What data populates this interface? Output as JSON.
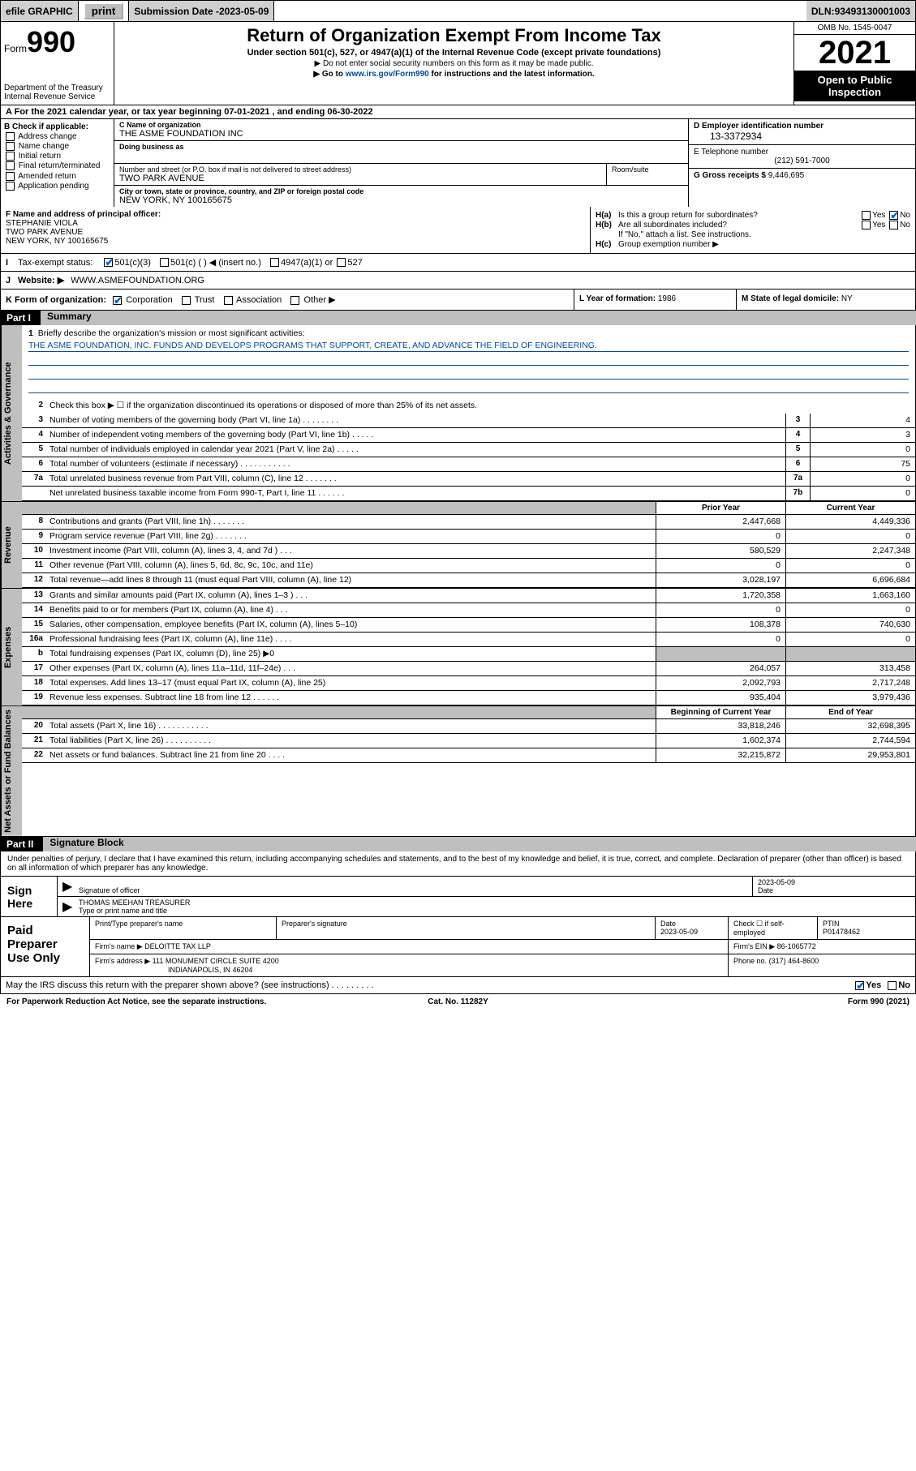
{
  "topbar": {
    "efile": "efile GRAPHIC",
    "print": "print",
    "subdate_label": "Submission Date - ",
    "subdate": "2023-05-09",
    "dln_label": "DLN: ",
    "dln": "93493130001003"
  },
  "header": {
    "form_prefix": "Form",
    "form_number": "990",
    "dept": "Department of the Treasury",
    "irs": "Internal Revenue Service",
    "title": "Return of Organization Exempt From Income Tax",
    "subtitle": "Under section 501(c), 527, or 4947(a)(1) of the Internal Revenue Code (except private foundations)",
    "note1": "▶ Do not enter social security numbers on this form as it may be made public.",
    "note2_prefix": "▶ Go to ",
    "note2_link": "www.irs.gov/Form990",
    "note2_suffix": " for instructions and the latest information.",
    "omb": "OMB No. 1545-0047",
    "year": "2021",
    "open_public": "Open to Public Inspection"
  },
  "row_a": "For the 2021 calendar year, or tax year beginning 07-01-2021   , and ending 06-30-2022",
  "section_b": {
    "title": "B Check if applicable:",
    "opts": [
      "Address change",
      "Name change",
      "Initial return",
      "Final return/terminated",
      "Amended return",
      "Application pending"
    ]
  },
  "section_c": {
    "name_label": "C Name of organization",
    "name": "THE ASME FOUNDATION INC",
    "dba_label": "Doing business as",
    "dba": "",
    "street_label": "Number and street (or P.O. box if mail is not delivered to street address)",
    "room_label": "Room/suite",
    "street": "TWO PARK AVENUE",
    "city_label": "City or town, state or province, country, and ZIP or foreign postal code",
    "city": "NEW YORK, NY  100165675"
  },
  "section_d": {
    "label": "D Employer identification number",
    "value": "13-3372934"
  },
  "section_e": {
    "label": "E Telephone number",
    "value": "(212) 591-7000"
  },
  "section_g": {
    "label": "G Gross receipts $",
    "value": "9,446,695"
  },
  "section_f": {
    "label": "F Name and address of principal officer:",
    "name": "STEPHANIE VIOLA",
    "street": "TWO PARK AVENUE",
    "city": "NEW YORK, NY  100165675"
  },
  "section_h": {
    "ha_label": "H(a)",
    "ha_text": "Is this a group return for subordinates?",
    "hb_label": "H(b)",
    "hb_text": "Are all subordinates included?",
    "hb_note": "If \"No,\" attach a list. See instructions.",
    "hc_label": "H(c)",
    "hc_text": "Group exemption number ▶",
    "yes": "Yes",
    "no": "No"
  },
  "section_i": {
    "label": "Tax-exempt status:",
    "opt1": "501(c)(3)",
    "opt2": "501(c) (   ) ◀ (insert no.)",
    "opt3": "4947(a)(1) or",
    "opt4": "527"
  },
  "section_j": {
    "label": "Website: ▶",
    "value": "WWW.ASMEFOUNDATION.ORG"
  },
  "section_k": {
    "label": "K Form of organization:",
    "opts": [
      "Corporation",
      "Trust",
      "Association",
      "Other ▶"
    ]
  },
  "section_l": {
    "label": "L Year of formation:",
    "value": "1986"
  },
  "section_m": {
    "label": "M State of legal domicile:",
    "value": "NY"
  },
  "part1": {
    "num": "Part I",
    "title": "Summary"
  },
  "summary": {
    "sidelabels": [
      "Activities & Governance",
      "Revenue",
      "Expenses",
      "Net Assets or Fund Balances"
    ],
    "line1_label": "Briefly describe the organization's mission or most significant activities:",
    "line1_text": "THE ASME FOUNDATION, INC. FUNDS AND DEVELOPS PROGRAMS THAT SUPPORT, CREATE, AND ADVANCE THE FIELD OF ENGINEERING.",
    "line2": "Check this box ▶ ☐  if the organization discontinued its operations or disposed of more than 25% of its net assets.",
    "rows_gov": [
      {
        "n": "3",
        "desc": "Number of voting members of the governing body (Part VI, line 1a)   .    .    .    .    .    .    .    .",
        "box": "3",
        "val": "4"
      },
      {
        "n": "4",
        "desc": "Number of independent voting members of the governing body (Part VI, line 1b)  .    .    .    .    .",
        "box": "4",
        "val": "3"
      },
      {
        "n": "5",
        "desc": "Total number of individuals employed in calendar year 2021 (Part V, line 2a)    .    .    .    .    .",
        "box": "5",
        "val": "0"
      },
      {
        "n": "6",
        "desc": "Total number of volunteers (estimate if necessary)   .    .    .    .    .    .    .    .    .    .    .",
        "box": "6",
        "val": "75"
      },
      {
        "n": "7a",
        "desc": "Total unrelated business revenue from Part VIII, column (C), line 12   .    .    .    .    .    .    .",
        "box": "7a",
        "val": "0"
      },
      {
        "n": "",
        "desc": "Net unrelated business taxable income from Form 990-T, Part I, line 11   .    .    .    .    .    .",
        "box": "7b",
        "val": "0"
      }
    ],
    "col_prior": "Prior Year",
    "col_current": "Current Year",
    "col_begin": "Beginning of Current Year",
    "col_end": "End of Year",
    "rows_rev": [
      {
        "n": "8",
        "desc": "Contributions and grants (Part VIII, line 1h)    .    .    .    .    .    .    .",
        "p": "2,447,668",
        "c": "4,449,336"
      },
      {
        "n": "9",
        "desc": "Program service revenue (Part VIII, line 2g)    .    .    .    .    .    .    .",
        "p": "0",
        "c": "0"
      },
      {
        "n": "10",
        "desc": "Investment income (Part VIII, column (A), lines 3, 4, and 7d )    .    .    .",
        "p": "580,529",
        "c": "2,247,348"
      },
      {
        "n": "11",
        "desc": "Other revenue (Part VIII, column (A), lines 5, 6d, 8c, 9c, 10c, and 11e)",
        "p": "0",
        "c": "0"
      },
      {
        "n": "12",
        "desc": "Total revenue—add lines 8 through 11 (must equal Part VIII, column (A), line 12)",
        "p": "3,028,197",
        "c": "6,696,684"
      }
    ],
    "rows_exp": [
      {
        "n": "13",
        "desc": "Grants and similar amounts paid (Part IX, column (A), lines 1–3 )    .    .    .",
        "p": "1,720,358",
        "c": "1,663,160"
      },
      {
        "n": "14",
        "desc": "Benefits paid to or for members (Part IX, column (A), line 4)    .    .    .",
        "p": "0",
        "c": "0"
      },
      {
        "n": "15",
        "desc": "Salaries, other compensation, employee benefits (Part IX, column (A), lines 5–10)",
        "p": "108,378",
        "c": "740,630"
      },
      {
        "n": "16a",
        "desc": "Professional fundraising fees (Part IX, column (A), line 11e)    .    .    .    .",
        "p": "0",
        "c": "0"
      },
      {
        "n": "b",
        "desc": "Total fundraising expenses (Part IX, column (D), line 25) ▶0",
        "p": "",
        "c": "",
        "shade": true
      },
      {
        "n": "17",
        "desc": "Other expenses (Part IX, column (A), lines 11a–11d, 11f–24e)    .    .    .",
        "p": "264,057",
        "c": "313,458"
      },
      {
        "n": "18",
        "desc": "Total expenses. Add lines 13–17 (must equal Part IX, column (A), line 25)",
        "p": "2,092,793",
        "c": "2,717,248"
      },
      {
        "n": "19",
        "desc": "Revenue less expenses. Subtract line 18 from line 12    .    .    .    .    .    .",
        "p": "935,404",
        "c": "3,979,436"
      }
    ],
    "rows_net": [
      {
        "n": "20",
        "desc": "Total assets (Part X, line 16)    .    .    .    .    .    .    .    .    .    .    .",
        "p": "33,818,246",
        "c": "32,698,395"
      },
      {
        "n": "21",
        "desc": "Total liabilities (Part X, line 26)    .    .    .    .    .    .    .    .    .    .",
        "p": "1,602,374",
        "c": "2,744,594"
      },
      {
        "n": "22",
        "desc": "Net assets or fund balances. Subtract line 21 from line 20    .    .    .    .",
        "p": "32,215,872",
        "c": "29,953,801"
      }
    ]
  },
  "part2": {
    "num": "Part II",
    "title": "Signature Block"
  },
  "sig_text": "Under penalties of perjury, I declare that I have examined this return, including accompanying schedules and statements, and to the best of my knowledge and belief, it is true, correct, and complete. Declaration of preparer (other than officer) is based on all information of which preparer has any knowledge.",
  "sign": {
    "label": "Sign Here",
    "sig_officer": "Signature of officer",
    "date": "2023-05-09",
    "date_label": "Date",
    "name": "THOMAS MEEHAN  TREASURER",
    "name_label": "Type or print name and title"
  },
  "paid": {
    "label": "Paid Preparer Use Only",
    "hdr": [
      "Print/Type preparer's name",
      "Preparer's signature",
      "Date",
      "",
      "PTIN"
    ],
    "r1": [
      "",
      "",
      "2023-05-09",
      "Check ☐ if self-employed",
      "P01478462"
    ],
    "firm_name_lbl": "Firm's name   ▶",
    "firm_name": "DELOITTE TAX LLP",
    "firm_ein_lbl": "Firm's EIN ▶",
    "firm_ein": "86-1065772",
    "firm_addr_lbl": "Firm's address ▶",
    "firm_addr": "111 MONUMENT CIRCLE SUITE 4200",
    "firm_city": "INDIANAPOLIS, IN  46204",
    "phone_lbl": "Phone no.",
    "phone": "(317) 464-8600"
  },
  "discuss": {
    "text": "May the IRS discuss this return with the preparer shown above? (see instructions)    .    .    .    .    .    .    .    .    .",
    "yes": "Yes",
    "no": "No"
  },
  "footer": {
    "left": "For Paperwork Reduction Act Notice, see the separate instructions.",
    "mid": "Cat. No. 11282Y",
    "right": "Form 990 (2021)"
  }
}
